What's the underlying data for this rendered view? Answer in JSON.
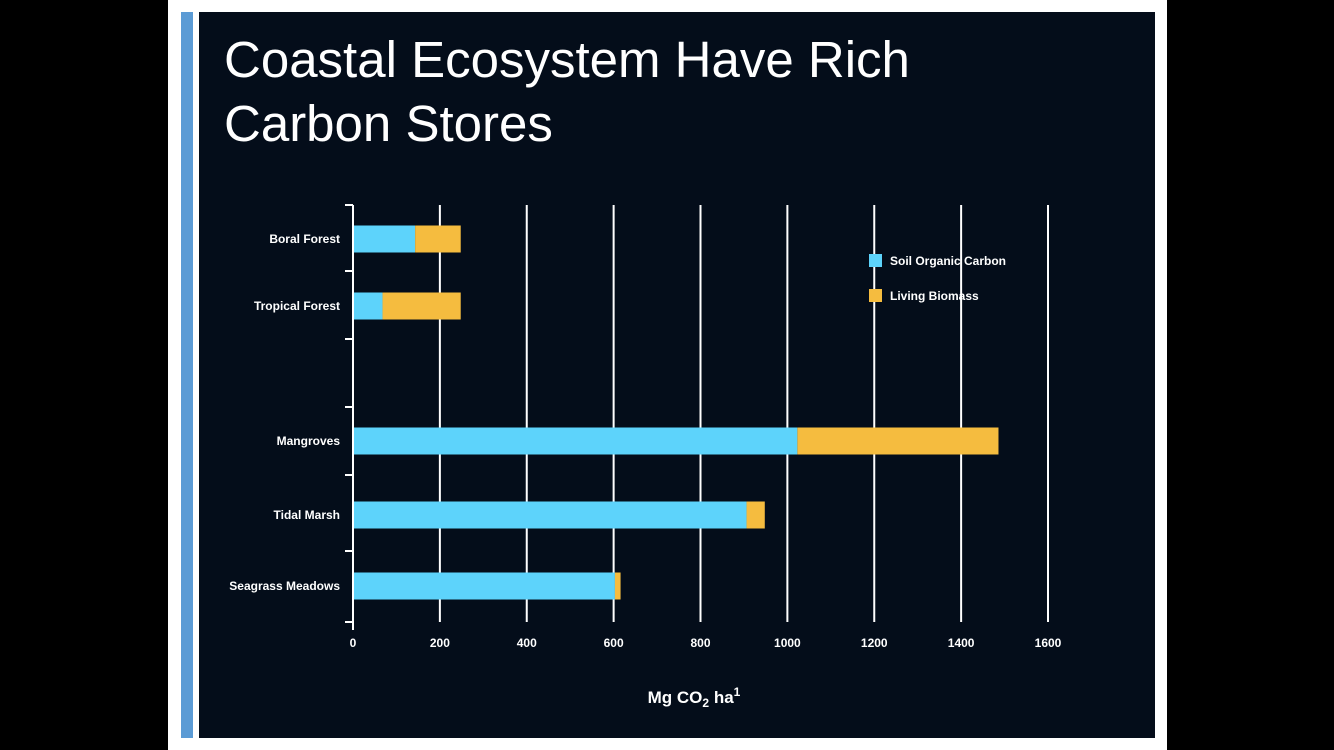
{
  "slide": {
    "title": "Coastal Ecosystem Have Rich\nCarbon Stores"
  },
  "colors": {
    "soil": "#5dd3fb",
    "biomass": "#f5bc3f",
    "background": "#040d1a",
    "accent": "#5b9bd5"
  },
  "chart_data": {
    "type": "bar",
    "orientation": "horizontal",
    "stacked": true,
    "categories": [
      "Boral Forest",
      "Tropical Forest",
      "Mangroves",
      "Tidal Marsh",
      "Seagrass Meadows"
    ],
    "series": [
      {
        "name": "Soil Organic Carbon",
        "values": [
          143,
          68,
          1023,
          906,
          603
        ]
      },
      {
        "name": "Living Biomass",
        "values": [
          105,
          180,
          463,
          42,
          13
        ]
      }
    ],
    "xlabel": "Mg CO",
    "xlabel_sub": "2",
    "xlabel_rest": " ha",
    "xlabel_sup": "1",
    "xlim": [
      0,
      1600
    ],
    "xticks": [
      0,
      200,
      400,
      600,
      800,
      1000,
      1200,
      1400,
      1600
    ],
    "grid": "vertical",
    "legend": "top-right"
  }
}
